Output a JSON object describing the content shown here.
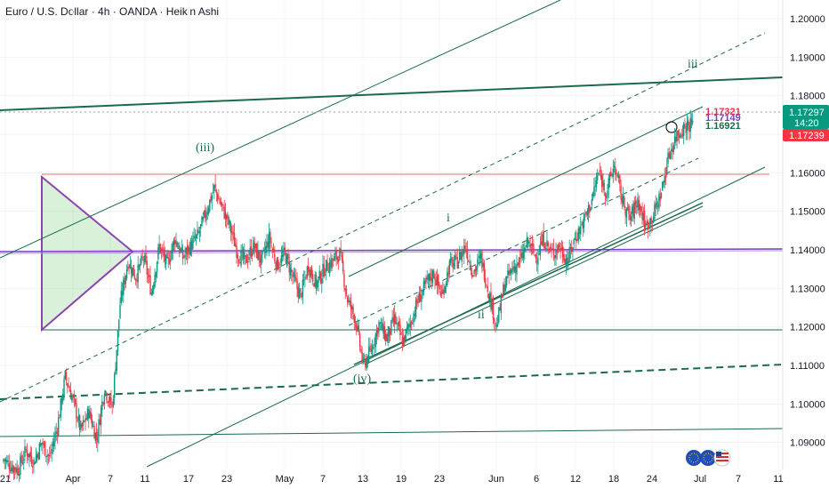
{
  "title": "Euro / U.S. Dollar · 4h · OANDA · Heikin Ashi",
  "chart_data": {
    "type": "candlestick",
    "symbol": "Euro / U.S. Dollar",
    "interval": "4h",
    "source": "OANDA",
    "style": "Heikin Ashi",
    "ylim": [
      1.083,
      1.203
    ],
    "yticks": [
      "1.20000",
      "1.19000",
      "1.18000",
      "1.17000",
      "1.16000",
      "1.15000",
      "1.14000",
      "1.13000",
      "1.12000",
      "1.11000",
      "1.10000",
      "1.09000"
    ],
    "xticks": [
      "21",
      "Apr",
      "7",
      "11",
      "17",
      "23",
      "May",
      "7",
      "13",
      "19",
      "23",
      "Jun",
      "6",
      "12",
      "18",
      "24",
      "Jul",
      "7",
      "11"
    ],
    "grid": true,
    "price_labels": [
      {
        "text": "1.17321",
        "value": 1.17321,
        "color": "#e0364a"
      },
      {
        "text": "1.17149",
        "value": 1.17149,
        "color": "#7b3fbf"
      },
      {
        "text": "1.16921",
        "value": 1.16921,
        "color": "#1b6b4a"
      }
    ],
    "axis_badges": [
      {
        "text": "1.17297",
        "sub": "14:20",
        "value": 1.17297,
        "color": "#089981"
      },
      {
        "text": "1.17239",
        "value": 1.17239,
        "color": "#f23645"
      }
    ],
    "wave_labels": [
      "(iii)",
      "(iv)",
      "i",
      "ii",
      "iii"
    ],
    "price_path": [
      [
        1.085,
        1.086
      ],
      [
        1.084,
        1.084
      ],
      [
        1.083,
        1.083
      ],
      [
        1.086,
        1.088
      ],
      [
        1.087,
        1.085
      ],
      [
        1.088,
        1.09
      ],
      [
        1.089,
        1.086
      ],
      [
        1.09,
        1.094
      ],
      [
        1.099,
        1.107
      ],
      [
        1.11,
        1.101
      ],
      [
        1.098,
        1.093
      ],
      [
        1.092,
        1.098
      ],
      [
        1.095,
        1.091
      ],
      [
        1.1,
        1.104
      ],
      [
        1.105,
        1.099
      ],
      [
        1.118,
        1.126
      ],
      [
        1.13,
        1.137
      ],
      [
        1.136,
        1.133
      ],
      [
        1.14,
        1.138
      ],
      [
        1.135,
        1.129
      ],
      [
        1.138,
        1.141
      ],
      [
        1.14,
        1.136
      ],
      [
        1.138,
        1.143
      ],
      [
        1.139,
        1.138
      ],
      [
        1.142,
        1.141
      ],
      [
        1.14,
        1.144
      ],
      [
        1.146,
        1.15
      ],
      [
        1.152,
        1.156
      ],
      [
        1.156,
        1.151
      ],
      [
        1.15,
        1.146
      ],
      [
        1.143,
        1.139
      ],
      [
        1.14,
        1.137
      ],
      [
        1.138,
        1.141
      ],
      [
        1.139,
        1.137
      ],
      [
        1.14,
        1.143
      ],
      [
        1.138,
        1.136
      ],
      [
        1.137,
        1.139
      ],
      [
        1.136,
        1.133
      ],
      [
        1.13,
        1.128
      ],
      [
        1.132,
        1.136
      ],
      [
        1.135,
        1.131
      ],
      [
        1.131,
        1.135
      ],
      [
        1.134,
        1.137
      ],
      [
        1.136,
        1.139
      ],
      [
        1.133,
        1.127
      ],
      [
        1.126,
        1.122
      ],
      [
        1.116,
        1.11
      ],
      [
        1.108,
        1.114
      ],
      [
        1.113,
        1.121
      ],
      [
        1.118,
        1.117
      ],
      [
        1.115,
        1.122
      ],
      [
        1.12,
        1.116
      ],
      [
        1.117,
        1.121
      ],
      [
        1.12,
        1.127
      ],
      [
        1.124,
        1.131
      ],
      [
        1.129,
        1.134
      ],
      [
        1.13,
        1.128
      ],
      [
        1.128,
        1.136
      ],
      [
        1.133,
        1.137
      ],
      [
        1.137,
        1.141
      ],
      [
        1.138,
        1.134
      ],
      [
        1.134,
        1.138
      ],
      [
        1.133,
        1.129
      ],
      [
        1.126,
        1.12
      ],
      [
        1.124,
        1.131
      ],
      [
        1.13,
        1.135
      ],
      [
        1.134,
        1.137
      ],
      [
        1.135,
        1.142
      ],
      [
        1.14,
        1.138
      ],
      [
        1.138,
        1.143
      ],
      [
        1.14,
        1.139
      ],
      [
        1.139,
        1.141
      ],
      [
        1.14,
        1.137
      ],
      [
        1.138,
        1.143
      ],
      [
        1.142,
        1.147
      ],
      [
        1.145,
        1.152
      ],
      [
        1.15,
        1.16
      ],
      [
        1.157,
        1.155
      ],
      [
        1.154,
        1.162
      ],
      [
        1.158,
        1.153
      ],
      [
        1.153,
        1.148
      ],
      [
        1.148,
        1.153
      ],
      [
        1.15,
        1.146
      ],
      [
        1.147,
        1.149
      ],
      [
        1.148,
        1.155
      ],
      [
        1.153,
        1.165
      ],
      [
        1.163,
        1.17
      ],
      [
        1.168,
        1.172
      ],
      [
        1.171,
        1.173
      ]
    ]
  }
}
